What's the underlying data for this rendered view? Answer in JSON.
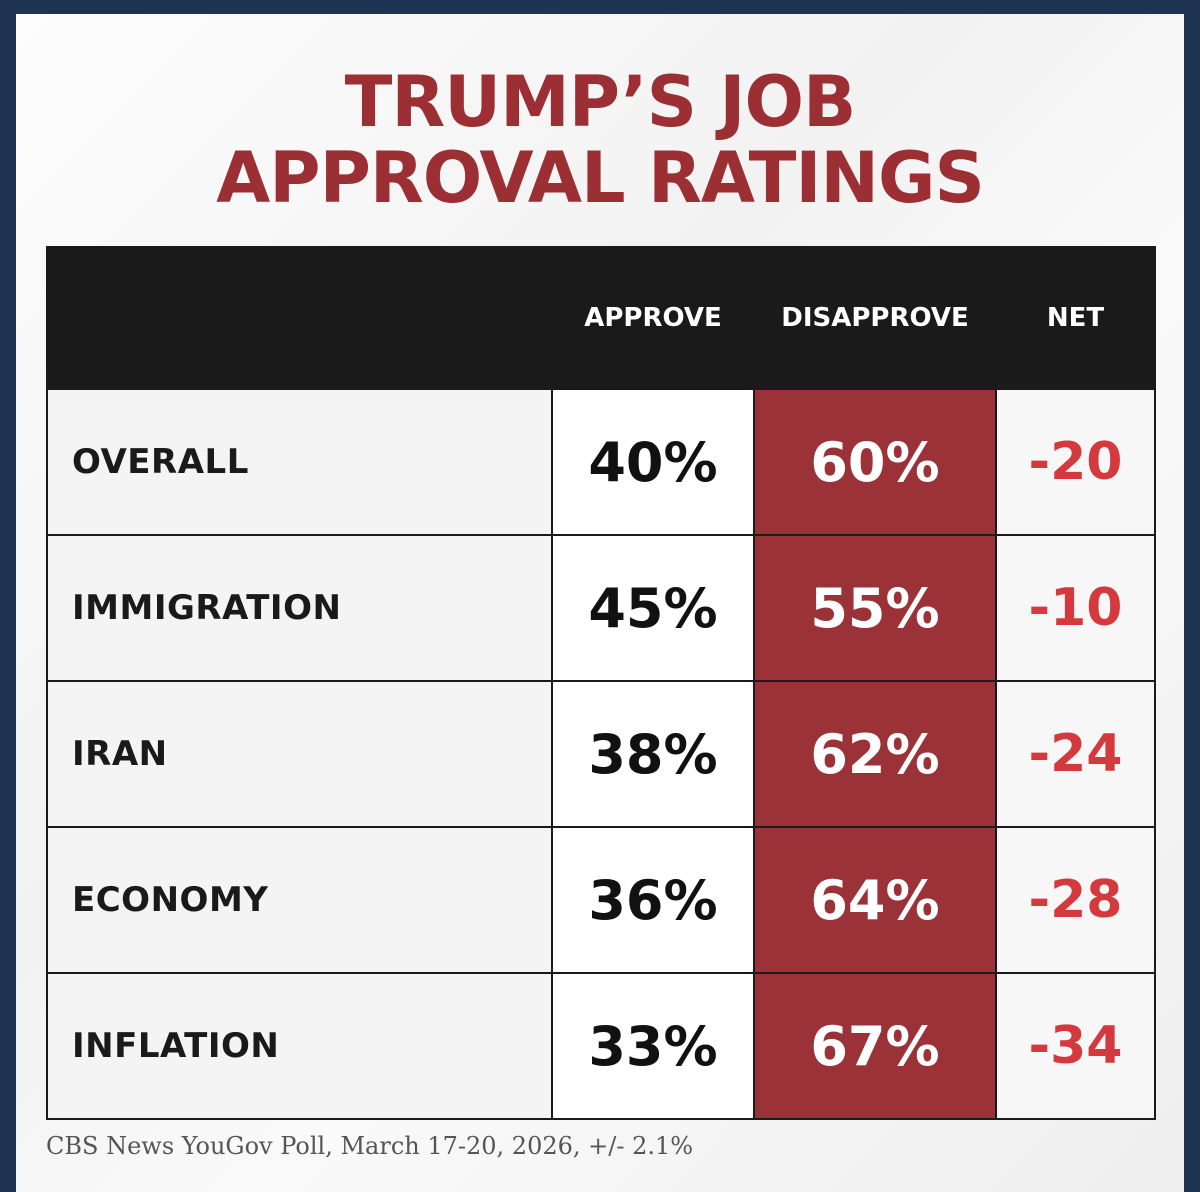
{
  "chart_data": {
    "type": "table",
    "title_lines": [
      "TRUMP’S JOB",
      "APPROVAL RATINGS"
    ],
    "columns": [
      "",
      "APPROVE",
      "DISAPPROVE",
      "NET"
    ],
    "rows": [
      {
        "category": "OVERALL",
        "approve": "40%",
        "disapprove": "60%",
        "net": "-20"
      },
      {
        "category": "IMMIGRATION",
        "approve": "45%",
        "disapprove": "55%",
        "net": "-10"
      },
      {
        "category": "IRAN",
        "approve": "38%",
        "disapprove": "62%",
        "net": "-24"
      },
      {
        "category": "ECONOMY",
        "approve": "36%",
        "disapprove": "64%",
        "net": "-28"
      },
      {
        "category": "INFLATION",
        "approve": "33%",
        "disapprove": "67%",
        "net": "-34"
      }
    ],
    "source": "CBS News YouGov Poll, March 17-20, 2026, +/- 2.1%"
  },
  "colors": {
    "title": "#9b2f34",
    "header_bg": "#1a1a1a",
    "disapprove_bg": "#9b3238",
    "net_text": "#d4393d",
    "frame": "#1f3352"
  }
}
